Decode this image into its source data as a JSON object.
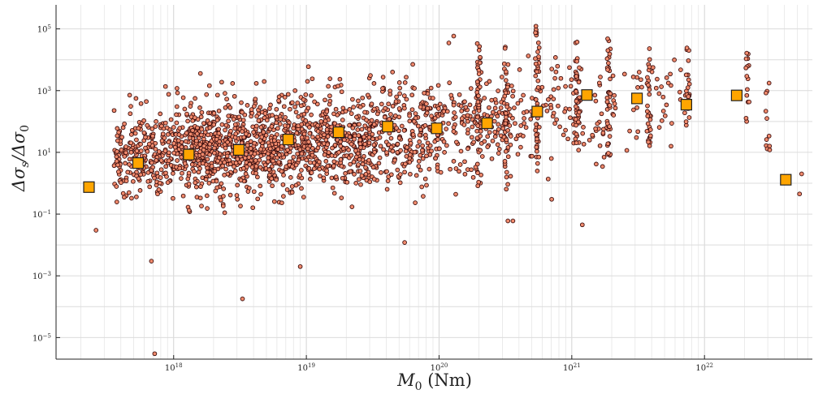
{
  "chart_data": {
    "type": "scatter",
    "title": "",
    "xscale": "log",
    "yscale": "log",
    "xlim": [
      1.3e+17,
      6.5e+22
    ],
    "ylim": [
      2e-06,
      600000.0
    ],
    "grid": true,
    "xlabel": "M_0 (Nm)",
    "ylabel": "Δσ_s/Δσ_0",
    "xlabel_parts": {
      "main": "M",
      "sub": "0",
      "unit": " (Nm)"
    },
    "ylabel_parts": {
      "a": "Δσ",
      "a_sub": "s",
      "sep": "/Δσ",
      "b_sub": "0"
    },
    "x_ticks": [
      {
        "base": "10",
        "exp": "18",
        "value": 1e+18
      },
      {
        "base": "10",
        "exp": "19",
        "value": 1e+19
      },
      {
        "base": "10",
        "exp": "20",
        "value": 1e+20
      },
      {
        "base": "10",
        "exp": "21",
        "value": 1e+21
      },
      {
        "base": "10",
        "exp": "22",
        "value": 1e+22
      }
    ],
    "y_ticks": [
      {
        "base": "10",
        "exp": "5",
        "value": 100000.0
      },
      {
        "base": "10",
        "exp": "3",
        "value": 1000.0
      },
      {
        "base": "10",
        "exp": "1",
        "value": 10.0
      },
      {
        "base": "10",
        "exp": "−1",
        "value": 0.1
      },
      {
        "base": "10",
        "exp": "−3",
        "value": 0.001
      },
      {
        "base": "10",
        "exp": "−5",
        "value": 1e-05
      }
    ],
    "series": [
      {
        "marker": "circle",
        "color": "#f08a6c",
        "edge": "#3a0d0d",
        "clusters": [
          {
            "xlog": [
              17.55,
              18.0
            ],
            "ylog_mean": 0.9,
            "ylog_sd": 0.75,
            "n": 240
          },
          {
            "xlog": [
              18.0,
              18.5
            ],
            "ylog_mean": 1.05,
            "ylog_sd": 0.75,
            "n": 420
          },
          {
            "xlog": [
              18.5,
              19.0
            ],
            "ylog_mean": 1.2,
            "ylog_sd": 0.75,
            "n": 420
          },
          {
            "xlog": [
              19.0,
              19.5
            ],
            "ylog_mean": 1.4,
            "ylog_sd": 0.8,
            "n": 360
          },
          {
            "xlog": [
              19.5,
              20.0
            ],
            "ylog_mean": 1.6,
            "ylog_sd": 0.8,
            "n": 260
          },
          {
            "xlog": [
              20.0,
              20.6
            ],
            "ylog_mean": 1.9,
            "ylog_sd": 0.8,
            "n": 180
          },
          {
            "xlog": [
              20.6,
              21.3
            ],
            "ylog_mean": 2.2,
            "ylog_sd": 0.8,
            "n": 110
          },
          {
            "xlog": [
              21.3,
              21.9
            ],
            "ylog_mean": 2.6,
            "ylog_sd": 0.7,
            "n": 50
          }
        ],
        "columns": [
          {
            "x": 2e+20,
            "y_range": [
              -0.6,
              4.8
            ],
            "n": 50
          },
          {
            "x": 3.2e+20,
            "y_range": [
              -0.4,
              4.5
            ],
            "n": 40
          },
          {
            "x": 5.5e+20,
            "y_range": [
              0.2,
              5.2
            ],
            "n": 45
          },
          {
            "x": 1.1e+21,
            "y_range": [
              0.8,
              4.6
            ],
            "n": 40
          },
          {
            "x": 1.9e+21,
            "y_range": [
              0.9,
              5.1
            ],
            "n": 35
          },
          {
            "x": 3.8e+21,
            "y_range": [
              1.2,
              4.5
            ],
            "n": 30
          },
          {
            "x": 7.5e+21,
            "y_range": [
              1.8,
              4.4
            ],
            "n": 18
          },
          {
            "x": 2.1e+22,
            "y_range": [
              2.0,
              4.3
            ],
            "n": 15
          },
          {
            "x": 3e+22,
            "y_range": [
              1.1,
              3.4
            ],
            "n": 10
          }
        ],
        "outliers": [
          {
            "x": 7.2e+17,
            "y": 3e-06
          },
          {
            "x": 3.3e+18,
            "y": 0.00018
          },
          {
            "x": 9e+18,
            "y": 0.002
          },
          {
            "x": 6.8e+17,
            "y": 0.003
          },
          {
            "x": 2.6e+17,
            "y": 0.03
          },
          {
            "x": 5.5e+19,
            "y": 0.012
          },
          {
            "x": 3.3e+20,
            "y": 0.06
          },
          {
            "x": 3.6e+20,
            "y": 0.06
          },
          {
            "x": 1.2e+21,
            "y": 0.045
          },
          {
            "x": 5.2e+22,
            "y": 0.45
          },
          {
            "x": 5.4e+22,
            "y": 2.0
          },
          {
            "x": 3.1e+22,
            "y": 12
          }
        ]
      },
      {
        "marker": "square",
        "color": "#ffa500",
        "edge": "#222222",
        "points": [
          {
            "x": 2.3e+17,
            "y": 0.75
          },
          {
            "x": 5.4e+17,
            "y": 4.5
          },
          {
            "x": 1.3e+18,
            "y": 8.5
          },
          {
            "x": 3.1e+18,
            "y": 12
          },
          {
            "x": 7.3e+18,
            "y": 26
          },
          {
            "x": 1.75e+19,
            "y": 45
          },
          {
            "x": 4.1e+19,
            "y": 68
          },
          {
            "x": 9.6e+19,
            "y": 60
          },
          {
            "x": 2.3e+20,
            "y": 88
          },
          {
            "x": 5.5e+20,
            "y": 210
          },
          {
            "x": 1.3e+21,
            "y": 720
          },
          {
            "x": 3.1e+21,
            "y": 560
          },
          {
            "x": 7.3e+21,
            "y": 350
          },
          {
            "x": 1.75e+22,
            "y": 700
          },
          {
            "x": 4.1e+22,
            "y": 1.3
          }
        ]
      }
    ]
  }
}
